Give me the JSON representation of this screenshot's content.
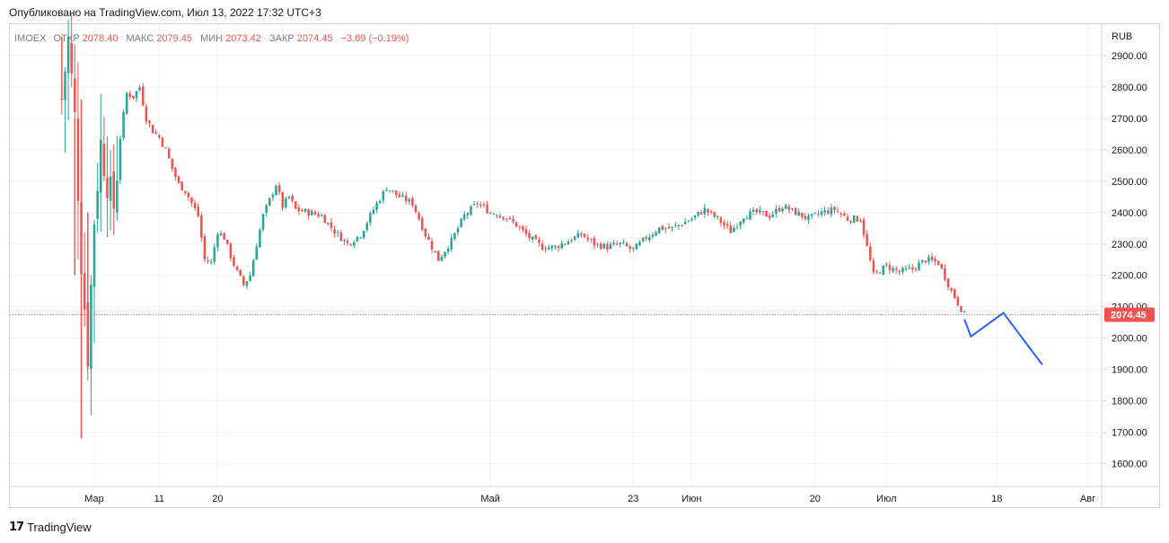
{
  "header": {
    "published": "Опубликовано на TradingView.com, Июл 13, 2022 17:32 UTC+3"
  },
  "legend": {
    "symbol": "IMOEX",
    "open_label": "ОТКР",
    "open_value": "2078.40",
    "high_label": "МАКС",
    "high_value": "2079.45",
    "low_label": "МИН",
    "low_value": "2073.42",
    "close_label": "ЗАКР",
    "close_value": "2074.45",
    "change": "−3.89 (−0.19%)"
  },
  "price_axis": {
    "currency": "RUB",
    "last_price_tag": "2074.45"
  },
  "colors": {
    "up": "#26a69a",
    "down": "#ef5350",
    "projection": "#2962ff",
    "last_price": "#ef5350",
    "grid": "#f0f3fa"
  },
  "footer": {
    "logo_text": "TradingView",
    "logo_icon": "tradingview-logo-icon"
  },
  "chart_data": {
    "type": "candlestick",
    "symbol": "IMOEX",
    "currency": "RUB",
    "ylim": [
      1530,
      3000
    ],
    "y_ticks": [
      "1600.00",
      "1700.00",
      "1800.00",
      "1900.00",
      "2000.00",
      "2100.00",
      "2200.00",
      "2300.00",
      "2400.00",
      "2500.00",
      "2600.00",
      "2700.00",
      "2800.00",
      "2900.00"
    ],
    "x_range": [
      "2022-02-16",
      "2022-08-03"
    ],
    "x_ticks": [
      {
        "date": "2022-03-01",
        "label": "Мар"
      },
      {
        "date": "2022-03-11",
        "label": "11"
      },
      {
        "date": "2022-03-20",
        "label": "20"
      },
      {
        "date": "2022-05-01",
        "label": "Май"
      },
      {
        "date": "2022-05-23",
        "label": "23"
      },
      {
        "date": "2022-06-01",
        "label": "Июн"
      },
      {
        "date": "2022-06-20",
        "label": "20"
      },
      {
        "date": "2022-07-01",
        "label": "Июл"
      },
      {
        "date": "2022-07-18",
        "label": "18"
      },
      {
        "date": "2022-08-01",
        "label": "Авг"
      }
    ],
    "grid": true,
    "last_price": 2074.45,
    "price_path": [
      [
        "2022-02-24",
        2760
      ],
      [
        "2022-02-25",
        2950
      ],
      [
        "2022-02-26",
        2700
      ],
      [
        "2022-02-27",
        2250
      ],
      [
        "2022-02-28",
        1950
      ],
      [
        "2022-03-01",
        2380
      ],
      [
        "2022-03-02",
        2620
      ],
      [
        "2022-03-03",
        2500
      ],
      [
        "2022-03-04",
        2420
      ],
      [
        "2022-03-05",
        2640
      ],
      [
        "2022-03-06",
        2780
      ],
      [
        "2022-03-07",
        2770
      ],
      [
        "2022-03-08",
        2800
      ],
      [
        "2022-03-09",
        2700
      ],
      [
        "2022-03-10",
        2660
      ],
      [
        "2022-03-11",
        2640
      ],
      [
        "2022-03-12",
        2600
      ],
      [
        "2022-03-13",
        2540
      ],
      [
        "2022-03-14",
        2490
      ],
      [
        "2022-03-15",
        2470
      ],
      [
        "2022-03-16",
        2430
      ],
      [
        "2022-03-17",
        2390
      ],
      [
        "2022-03-18",
        2250
      ],
      [
        "2022-03-19",
        2240
      ],
      [
        "2022-03-20",
        2340
      ],
      [
        "2022-03-21",
        2320
      ],
      [
        "2022-03-22",
        2260
      ],
      [
        "2022-03-23",
        2210
      ],
      [
        "2022-03-24",
        2170
      ],
      [
        "2022-03-25",
        2200
      ],
      [
        "2022-03-26",
        2300
      ],
      [
        "2022-03-27",
        2390
      ],
      [
        "2022-03-28",
        2440
      ],
      [
        "2022-03-29",
        2490
      ],
      [
        "2022-03-30",
        2420
      ],
      [
        "2022-03-31",
        2450
      ],
      [
        "2022-04-01",
        2410
      ],
      [
        "2022-04-03",
        2400
      ],
      [
        "2022-04-05",
        2390
      ],
      [
        "2022-04-07",
        2340
      ],
      [
        "2022-04-09",
        2300
      ],
      [
        "2022-04-11",
        2330
      ],
      [
        "2022-04-13",
        2410
      ],
      [
        "2022-04-15",
        2480
      ],
      [
        "2022-04-17",
        2450
      ],
      [
        "2022-04-19",
        2430
      ],
      [
        "2022-04-21",
        2330
      ],
      [
        "2022-04-23",
        2250
      ],
      [
        "2022-04-25",
        2310
      ],
      [
        "2022-04-27",
        2390
      ],
      [
        "2022-04-29",
        2430
      ],
      [
        "2022-05-01",
        2400
      ],
      [
        "2022-05-03",
        2390
      ],
      [
        "2022-05-05",
        2360
      ],
      [
        "2022-05-07",
        2320
      ],
      [
        "2022-05-09",
        2290
      ],
      [
        "2022-05-11",
        2290
      ],
      [
        "2022-05-13",
        2310
      ],
      [
        "2022-05-15",
        2330
      ],
      [
        "2022-05-17",
        2300
      ],
      [
        "2022-05-19",
        2290
      ],
      [
        "2022-05-21",
        2300
      ],
      [
        "2022-05-23",
        2280
      ],
      [
        "2022-05-25",
        2320
      ],
      [
        "2022-05-27",
        2350
      ],
      [
        "2022-05-29",
        2350
      ],
      [
        "2022-06-01",
        2380
      ],
      [
        "2022-06-03",
        2410
      ],
      [
        "2022-06-05",
        2380
      ],
      [
        "2022-06-07",
        2340
      ],
      [
        "2022-06-09",
        2390
      ],
      [
        "2022-06-11",
        2400
      ],
      [
        "2022-06-13",
        2390
      ],
      [
        "2022-06-15",
        2420
      ],
      [
        "2022-06-17",
        2400
      ],
      [
        "2022-06-19",
        2380
      ],
      [
        "2022-06-21",
        2400
      ],
      [
        "2022-06-23",
        2410
      ],
      [
        "2022-06-25",
        2380
      ],
      [
        "2022-06-27",
        2380
      ],
      [
        "2022-06-29",
        2200
      ],
      [
        "2022-07-01",
        2230
      ],
      [
        "2022-07-03",
        2210
      ],
      [
        "2022-07-05",
        2220
      ],
      [
        "2022-07-07",
        2250
      ],
      [
        "2022-07-09",
        2240
      ],
      [
        "2022-07-11",
        2150
      ],
      [
        "2022-07-13",
        2074.45
      ]
    ],
    "projection": [
      [
        "2022-07-13",
        2060
      ],
      [
        "2022-07-14",
        2005
      ],
      [
        "2022-07-19",
        2080
      ],
      [
        "2022-07-25",
        1915
      ]
    ]
  }
}
